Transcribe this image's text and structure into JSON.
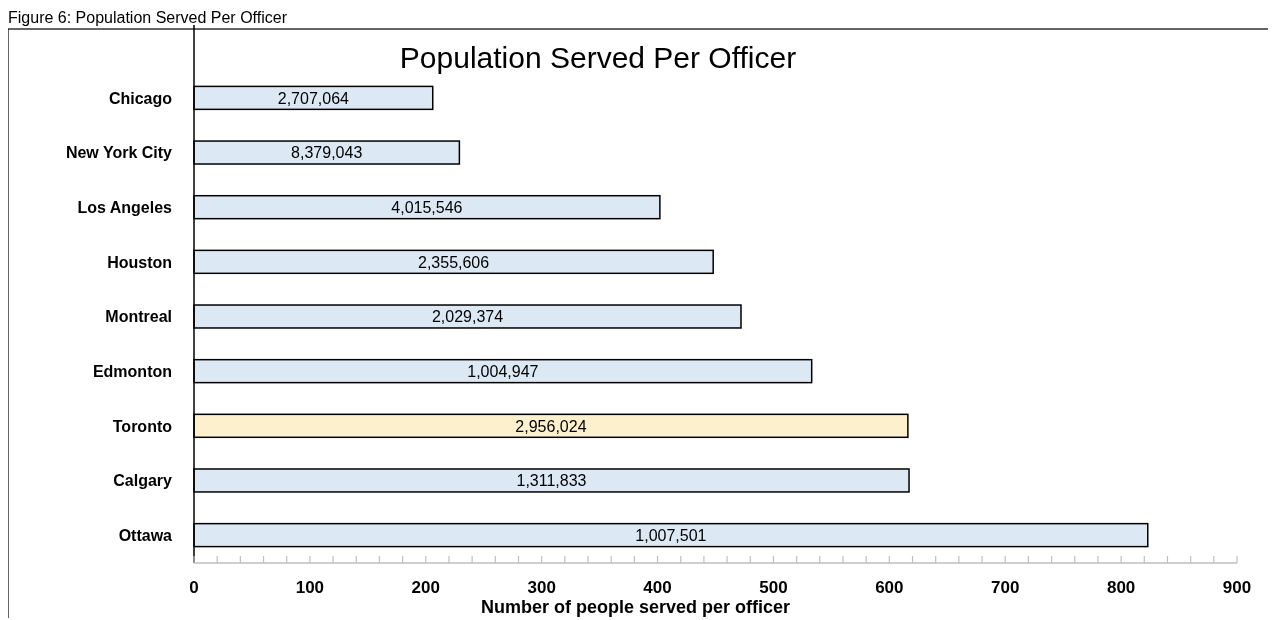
{
  "chart_data": {
    "type": "bar",
    "orientation": "horizontal",
    "title": "Population Served Per Officer",
    "xlabel": "Number of people served per officer",
    "annotations": [
      "Figure 6: Population Served Per Officer",
      "2,707,064",
      "8,379,043",
      "4,015,546",
      "2,355,606",
      "2,029,374",
      "1,004,947",
      "2,956,024",
      "1,311,833",
      "1,007,501"
    ],
    "categories": [
      "Chicago",
      "New York City",
      "Los Angeles",
      "Houston",
      "Montreal",
      "Edmonton",
      "Toronto",
      "Calgary",
      "Ottawa"
    ],
    "values": [
      206,
      229,
      402,
      448,
      472,
      533,
      616,
      617,
      823
    ],
    "colors": [
      "#dde8f5",
      "#dde8f5",
      "#dde8f5",
      "#dde8f5",
      "#dde8f5",
      "#dde8f5",
      "#fdf0cc",
      "#dde8f5",
      "#dde8f5"
    ],
    "xlim": [
      0,
      900
    ],
    "xticks": [
      0,
      {
        "value": 20,
        "label": null
      },
      {
        "value": 40,
        "label": null
      },
      {
        "value": 60,
        "label": null
      },
      {
        "value": 80,
        "label": null
      },
      100,
      {
        "value": 120,
        "label": null
      },
      {
        "value": 140,
        "label": null
      },
      {
        "value": 160,
        "label": null
      },
      {
        "value": 180,
        "label": null
      },
      200,
      {
        "value": 220,
        "label": null
      },
      {
        "value": 240,
        "label": null
      },
      {
        "value": 260,
        "label": null
      },
      {
        "value": 280,
        "label": null
      },
      300,
      {
        "value": 320,
        "label": null
      },
      {
        "value": 340,
        "label": null
      },
      {
        "value": 360,
        "label": null
      },
      {
        "value": 380,
        "label": null
      },
      400,
      {
        "value": 420,
        "label": null
      },
      {
        "value": 440,
        "label": null
      },
      {
        "value": 460,
        "label": null
      },
      {
        "value": 480,
        "label": null
      },
      500,
      {
        "value": 520,
        "label": null
      },
      {
        "value": 540,
        "label": null
      },
      {
        "value": 560,
        "label": null
      },
      {
        "value": 580,
        "label": null
      },
      600,
      {
        "value": 620,
        "label": null
      },
      {
        "value": 640,
        "label": null
      },
      {
        "value": 660,
        "label": null
      },
      {
        "value": 680,
        "label": null
      },
      700,
      {
        "value": 720,
        "label": null
      },
      {
        "value": 740,
        "label": null
      },
      {
        "value": 760,
        "label": null
      },
      {
        "value": 780,
        "label": null
      },
      800,
      {
        "value": 820,
        "label": null
      },
      {
        "value": 840,
        "label": null
      },
      {
        "value": 860,
        "label": null
      },
      {
        "value": 880,
        "label": null
      },
      900
    ],
    "grid": false
  }
}
